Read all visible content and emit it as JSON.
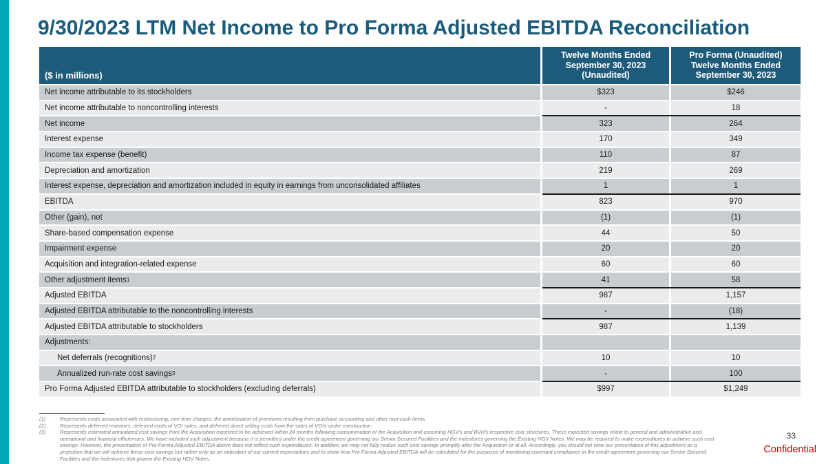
{
  "slide": {
    "title": "9/30/2023 LTM Net Income to Pro Forma Adjusted EBITDA Reconciliation",
    "page_number": "33",
    "confidential_label": "Confidential"
  },
  "colors": {
    "accent_bar_teal": "#00A8B5",
    "header_background": "#1E5B7B",
    "title_text": "#1A5B7C",
    "row_dark": "#C9CDD0",
    "row_light": "#E9EBEC",
    "subtotal_line": "#1a1a1a",
    "confidential_red": "#C00000"
  },
  "table": {
    "header": {
      "col1": "($ in millions)",
      "col2": "Twelve Months Ended\nSeptember 30, 2023\n(Unaudited)",
      "col3": "Pro Forma (Unaudited)\nTwelve Months Ended\nSeptember 30, 2023"
    },
    "rows": [
      {
        "label": "Net income attributable to its stockholders",
        "sup": "",
        "v1": "$323",
        "v2": "$246",
        "indent": false,
        "line_above": false
      },
      {
        "label": "Net income attributable to noncontrolling interests",
        "sup": "",
        "v1": "-",
        "v2": "18",
        "indent": false,
        "line_above": false
      },
      {
        "label": "Net income",
        "sup": "",
        "v1": "323",
        "v2": "264",
        "indent": false,
        "line_above": true
      },
      {
        "label": "Interest expense",
        "sup": "",
        "v1": "170",
        "v2": "349",
        "indent": false,
        "line_above": false
      },
      {
        "label": "Income tax expense (benefit)",
        "sup": "",
        "v1": "110",
        "v2": "87",
        "indent": false,
        "line_above": false
      },
      {
        "label": "Depreciation and amortization",
        "sup": "",
        "v1": "219",
        "v2": "269",
        "indent": false,
        "line_above": false
      },
      {
        "label": "Interest expense, depreciation and amortization included in equity in earnings from unconsolidated affiliates",
        "sup": "",
        "v1": "1",
        "v2": "1",
        "indent": false,
        "line_above": false
      },
      {
        "label": "EBITDA",
        "sup": "",
        "v1": "823",
        "v2": "970",
        "indent": false,
        "line_above": true
      },
      {
        "label": "Other (gain), net",
        "sup": "",
        "v1": "(1)",
        "v2": "(1)",
        "indent": false,
        "line_above": false
      },
      {
        "label": "Share-based compensation expense",
        "sup": "",
        "v1": "44",
        "v2": "50",
        "indent": false,
        "line_above": false
      },
      {
        "label": "Impairment expense",
        "sup": "",
        "v1": "20",
        "v2": "20",
        "indent": false,
        "line_above": false
      },
      {
        "label": "Acquisition and integration-related expense",
        "sup": "",
        "v1": "60",
        "v2": "60",
        "indent": false,
        "line_above": false
      },
      {
        "label": "Other adjustment items",
        "sup": "1",
        "v1": "41",
        "v2": "58",
        "indent": false,
        "line_above": false
      },
      {
        "label": "Adjusted EBITDA",
        "sup": "",
        "v1": "987",
        "v2": "1,157",
        "indent": false,
        "line_above": true
      },
      {
        "label": "Adjusted EBITDA attributable to the noncontrolling interests",
        "sup": "",
        "v1": "-",
        "v2": "(18)",
        "indent": false,
        "line_above": false
      },
      {
        "label": "Adjusted EBITDA attributable to stockholders",
        "sup": "",
        "v1": "987",
        "v2": "1,139",
        "indent": false,
        "line_above": true
      },
      {
        "label": "Adjustments:",
        "sup": "",
        "v1": "",
        "v2": "",
        "indent": false,
        "line_above": false
      },
      {
        "label": "Net deferrals (recognitions)",
        "sup": "2",
        "v1": "10",
        "v2": "10",
        "indent": true,
        "line_above": false
      },
      {
        "label": "Annualized run-rate cost savings",
        "sup": "3",
        "v1": "-",
        "v2": "100",
        "indent": true,
        "line_above": false
      },
      {
        "label": "Pro Forma Adjusted EBITDA attributable to stockholders (excluding deferrals)",
        "sup": "",
        "v1": "$997",
        "v2": "$1,249",
        "indent": false,
        "line_above": true
      }
    ]
  },
  "footnotes": [
    {
      "marker": "(1)",
      "text": "Represents costs associated with restructuring, one-time charges, the amortization of premiums resulting from purchase accounting and other non-cash items."
    },
    {
      "marker": "(2)",
      "text": "Represents deferred revenues, deferred costs of VOI sales, and deferred direct selling costs from the sales of VOIs under construction."
    },
    {
      "marker": "(3)",
      "text": "Represents estimated annualized cost savings from the Acquisition expected to be achieved within 24 months following consummation of the Acquisition and assuming HGV's and BVH's respective cost structures. These expected savings relate to general and administrative and operational and financial efficiencies. We have included such adjustment because it is permitted under the credit agreement governing our Senior Secured Facilities and the indentures governing the Existing HGV Notes. We may be required to make expenditures to achieve such cost savings. However, the presentation of Pro Forma Adjusted EBITDA above does not reflect such expenditures. In addition, we may not fully realize such cost savings promptly after the Acquisition or at all. Accordingly, you should not view our presentation of this adjustment as a projection that we will achieve these cost savings but rather only as an indication of our current expectations and to show how Pro Forma Adjusted EBITDA will be calculated for the purposes of monitoring covenant compliance in the credit agreement governing our Senior Secured Facilities and the indentures that govern the Existing HGV Notes."
    }
  ]
}
